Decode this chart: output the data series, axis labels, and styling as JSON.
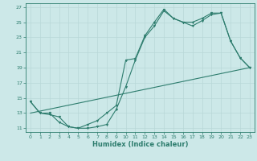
{
  "xlabel": "Humidex (Indice chaleur)",
  "xlim": [
    -0.5,
    23.5
  ],
  "ylim": [
    10.5,
    27.5
  ],
  "xticks": [
    0,
    1,
    2,
    3,
    4,
    5,
    6,
    7,
    8,
    9,
    10,
    11,
    12,
    13,
    14,
    15,
    16,
    17,
    18,
    19,
    20,
    21,
    22,
    23
  ],
  "yticks": [
    11,
    13,
    15,
    17,
    19,
    21,
    23,
    25,
    27
  ],
  "line_color": "#2e7d6e",
  "bg_color": "#cce8e8",
  "grid_color": "#b8d8d8",
  "curve1_x": [
    0,
    1,
    2,
    3,
    4,
    5,
    6,
    7,
    8,
    9,
    10,
    11,
    12,
    13,
    14,
    15,
    16,
    17,
    18,
    19,
    20,
    21,
    22,
    23
  ],
  "curve1_y": [
    14.5,
    13.0,
    13.0,
    11.8,
    11.2,
    11.0,
    11.0,
    11.2,
    11.5,
    13.5,
    16.5,
    20.0,
    23.0,
    24.5,
    26.5,
    25.5,
    25.0,
    24.5,
    25.2,
    26.0,
    26.2,
    22.5,
    20.3,
    19.0
  ],
  "curve2_x": [
    0,
    1,
    2,
    3,
    4,
    5,
    6,
    7,
    8,
    9,
    10,
    11,
    12,
    13,
    14,
    15,
    16,
    17,
    18,
    19,
    20,
    21,
    22,
    23
  ],
  "curve2_y": [
    14.5,
    13.0,
    12.8,
    12.5,
    11.2,
    11.0,
    11.5,
    12.0,
    13.0,
    14.0,
    20.0,
    20.2,
    23.2,
    25.0,
    26.7,
    25.5,
    25.0,
    25.0,
    25.5,
    26.2,
    26.2,
    22.5,
    20.3,
    19.0
  ],
  "curve3_x": [
    0,
    23
  ],
  "curve3_y": [
    13.0,
    19.0
  ]
}
